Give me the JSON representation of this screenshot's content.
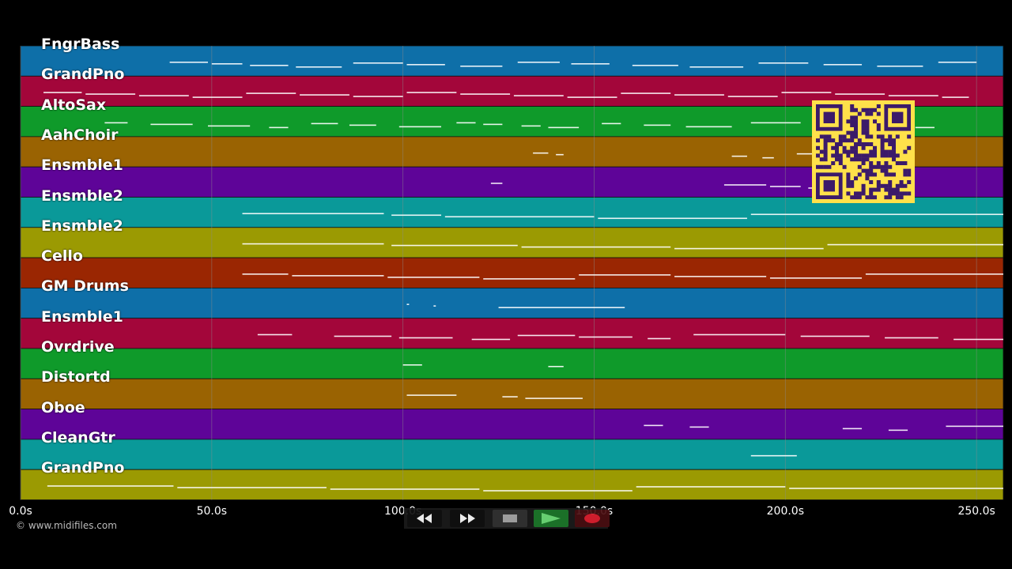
{
  "app": {
    "copyright": "© www.midifiles.com"
  },
  "colors": {
    "background": "#000000",
    "gridline": "#8a8a8a",
    "notes": "#ffffff",
    "qr_background": "#ffe14a",
    "qr_foreground": "#3b1a6a"
  },
  "timeline": {
    "min_seconds": 0,
    "max_seconds": 257,
    "ticks": [
      {
        "seconds": 0,
        "label": "0.0s"
      },
      {
        "seconds": 50,
        "label": "50.0s"
      },
      {
        "seconds": 100,
        "label": "100.0s"
      },
      {
        "seconds": 150,
        "label": "150.0s"
      },
      {
        "seconds": 200,
        "label": "200.0s"
      },
      {
        "seconds": 250,
        "label": "250.0s"
      }
    ]
  },
  "tracks": [
    {
      "label": "FngrBass",
      "color": "#0e6fa8",
      "notes": [
        [
          39,
          49
        ],
        [
          50,
          58
        ],
        [
          60,
          70
        ],
        [
          72,
          84
        ],
        [
          87,
          100
        ],
        [
          101,
          111
        ],
        [
          115,
          126
        ],
        [
          130,
          141
        ],
        [
          144,
          154
        ],
        [
          160,
          172
        ],
        [
          175,
          189
        ],
        [
          193,
          206
        ],
        [
          210,
          220
        ],
        [
          224,
          236
        ],
        [
          240,
          250
        ]
      ]
    },
    {
      "label": "GrandPno",
      "color": "#a3063a",
      "notes": [
        [
          6,
          16
        ],
        [
          17,
          30
        ],
        [
          31,
          44
        ],
        [
          45,
          58
        ],
        [
          59,
          72
        ],
        [
          73,
          86
        ],
        [
          87,
          100
        ],
        [
          101,
          114
        ],
        [
          115,
          128
        ],
        [
          129,
          142
        ],
        [
          143,
          156
        ],
        [
          157,
          170
        ],
        [
          171,
          184
        ],
        [
          185,
          198
        ],
        [
          199,
          212
        ],
        [
          213,
          226
        ],
        [
          227,
          240
        ],
        [
          241,
          248
        ]
      ]
    },
    {
      "label": "AltoSax",
      "color": "#0f9a2a",
      "notes": [
        [
          22,
          28
        ],
        [
          34,
          45
        ],
        [
          49,
          60
        ],
        [
          65,
          70
        ],
        [
          76,
          83
        ],
        [
          86,
          93
        ],
        [
          99,
          110
        ],
        [
          114,
          119
        ],
        [
          121,
          126
        ],
        [
          131,
          136
        ],
        [
          138,
          146
        ],
        [
          152,
          157
        ],
        [
          163,
          170
        ],
        [
          174,
          186
        ],
        [
          191,
          204
        ],
        [
          208,
          215
        ],
        [
          219,
          224
        ],
        [
          234,
          239
        ]
      ]
    },
    {
      "label": "AahChoir",
      "color": "#9a6302",
      "notes": [
        [
          134,
          138
        ],
        [
          140,
          142
        ],
        [
          186,
          190
        ],
        [
          194,
          197
        ],
        [
          203,
          208
        ],
        [
          212,
          216
        ]
      ]
    },
    {
      "label": "Ensmble1",
      "color": "#5e0498",
      "notes": [
        [
          123,
          126
        ],
        [
          184,
          195
        ],
        [
          196,
          204
        ],
        [
          206,
          214
        ],
        [
          217,
          222
        ]
      ]
    },
    {
      "label": "Ensmble2",
      "color": "#0a9999",
      "notes": [
        [
          58,
          95
        ],
        [
          97,
          110
        ],
        [
          111,
          150
        ],
        [
          151,
          190
        ],
        [
          191,
          257
        ]
      ]
    },
    {
      "label": "Ensmble2",
      "color": "#9b9a02",
      "notes": [
        [
          58,
          95
        ],
        [
          97,
          130
        ],
        [
          131,
          170
        ],
        [
          171,
          210
        ],
        [
          211,
          257
        ]
      ]
    },
    {
      "label": "Cello",
      "color": "#9a2602",
      "notes": [
        [
          58,
          70
        ],
        [
          71,
          95
        ],
        [
          96,
          120
        ],
        [
          121,
          145
        ],
        [
          146,
          170
        ],
        [
          171,
          195
        ],
        [
          196,
          220
        ],
        [
          221,
          257
        ]
      ]
    },
    {
      "label": "GM Drums",
      "color": "#0e6fa8",
      "notes": [
        [
          101,
          101.6
        ],
        [
          108,
          108.6
        ],
        [
          125,
          158
        ]
      ]
    },
    {
      "label": "Ensmble1",
      "color": "#a3063a",
      "notes": [
        [
          62,
          71
        ],
        [
          82,
          97
        ],
        [
          99,
          113
        ],
        [
          118,
          128
        ],
        [
          130,
          145
        ],
        [
          146,
          160
        ],
        [
          164,
          170
        ],
        [
          176,
          200
        ],
        [
          204,
          222
        ],
        [
          226,
          240
        ],
        [
          244,
          257
        ]
      ]
    },
    {
      "label": "Ovrdrive",
      "color": "#0f9a2a",
      "notes": [
        [
          100,
          105
        ],
        [
          138,
          142
        ]
      ]
    },
    {
      "label": "Distortd",
      "color": "#9a6302",
      "notes": [
        [
          101,
          114
        ],
        [
          126,
          130
        ],
        [
          132,
          147
        ]
      ]
    },
    {
      "label": "Oboe",
      "color": "#5e0498",
      "notes": [
        [
          163,
          168
        ],
        [
          175,
          180
        ],
        [
          215,
          220
        ],
        [
          227,
          232
        ],
        [
          242,
          257
        ]
      ]
    },
    {
      "label": "CleanGtr",
      "color": "#0a9999",
      "notes": [
        [
          191,
          203
        ]
      ]
    },
    {
      "label": "GrandPno",
      "color": "#9b9a02",
      "notes": [
        [
          7,
          40
        ],
        [
          41,
          80
        ],
        [
          81,
          120
        ],
        [
          121,
          160
        ],
        [
          161,
          200
        ],
        [
          201,
          257
        ]
      ]
    }
  ],
  "controls": [
    {
      "name": "rewind",
      "icon": "rewind-icon"
    },
    {
      "name": "fast-forward",
      "icon": "fast-forward-icon"
    },
    {
      "name": "stop",
      "icon": "stop-icon"
    },
    {
      "name": "play",
      "icon": "play-icon"
    },
    {
      "name": "record",
      "icon": "record-icon"
    }
  ]
}
